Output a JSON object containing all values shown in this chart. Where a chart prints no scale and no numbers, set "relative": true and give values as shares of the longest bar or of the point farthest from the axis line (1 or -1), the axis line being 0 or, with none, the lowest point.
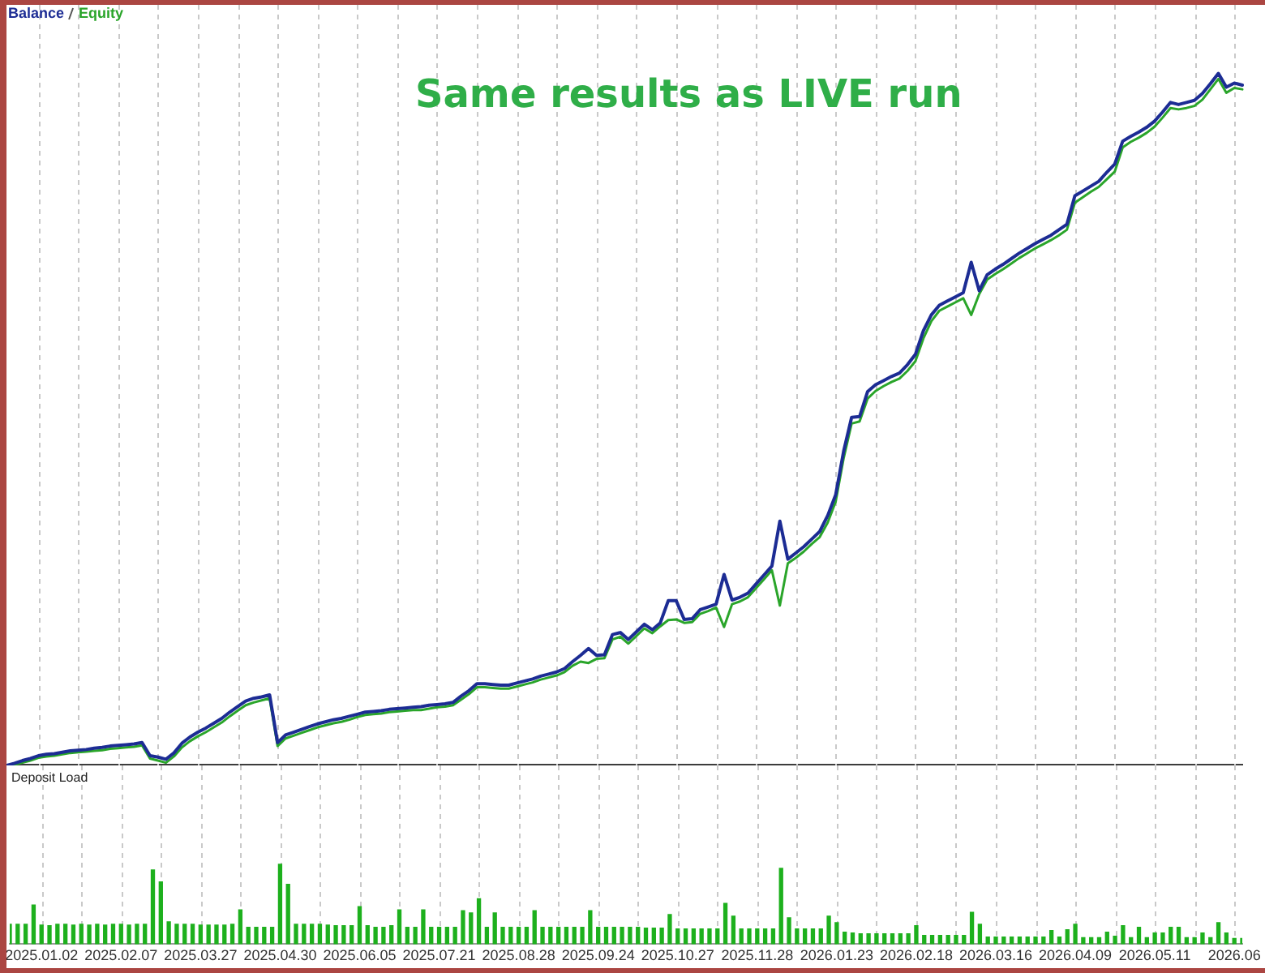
{
  "chart_data": [
    {
      "type": "line",
      "title": "Same results as LIVE run",
      "relative": true,
      "categories": [
        null,
        null,
        null,
        null,
        null,
        null,
        null,
        null,
        null,
        null,
        null,
        null,
        null,
        null,
        null,
        null,
        null,
        null,
        null,
        null,
        null,
        null,
        null,
        null,
        null,
        null,
        null,
        null,
        null,
        null,
        null,
        null,
        null,
        null,
        null,
        null,
        null,
        null,
        null,
        null,
        null,
        null,
        null,
        null,
        null,
        null,
        null,
        null,
        null,
        null,
        null,
        null,
        null,
        null,
        null,
        null,
        null,
        null,
        null,
        null,
        null,
        null,
        null,
        null,
        null,
        null,
        null,
        null,
        null,
        null,
        null,
        null,
        null,
        null,
        null,
        null,
        null,
        null,
        null,
        null,
        null,
        null,
        null,
        null,
        null,
        null,
        null,
        null,
        null,
        null,
        null,
        null,
        null,
        null,
        null,
        null,
        null,
        null,
        null,
        null,
        null,
        null,
        null,
        null,
        null,
        null,
        null,
        null,
        null,
        null,
        null,
        null,
        null,
        null,
        null,
        null,
        null,
        null,
        null,
        null,
        null,
        null,
        null,
        null,
        null,
        null,
        null,
        null,
        null,
        null,
        null,
        null,
        null,
        null,
        null,
        null,
        null,
        null,
        null,
        null,
        null,
        null,
        null,
        null,
        null,
        null,
        null,
        null,
        null,
        null,
        null,
        null,
        null,
        null,
        null,
        null
      ],
      "series": [
        {
          "name": "Balance",
          "color": "#1c2c94",
          "values": [
            0.0,
            0.003,
            0.007,
            0.01,
            0.014,
            0.016,
            0.017,
            0.019,
            0.021,
            0.022,
            0.023,
            0.025,
            0.026,
            0.028,
            0.029,
            0.03,
            0.031,
            0.033,
            0.014,
            0.012,
            0.009,
            0.018,
            0.032,
            0.041,
            0.048,
            0.054,
            0.061,
            0.068,
            0.077,
            0.085,
            0.093,
            0.097,
            0.099,
            0.102,
            0.033,
            0.044,
            0.048,
            0.052,
            0.056,
            0.06,
            0.063,
            0.066,
            0.068,
            0.071,
            0.074,
            0.077,
            0.078,
            0.079,
            0.081,
            0.082,
            0.083,
            0.084,
            0.085,
            0.087,
            0.088,
            0.089,
            0.091,
            0.1,
            0.108,
            0.118,
            0.118,
            0.117,
            0.116,
            0.116,
            0.119,
            0.122,
            0.125,
            0.129,
            0.132,
            0.135,
            0.14,
            0.15,
            0.159,
            0.169,
            0.159,
            0.16,
            0.189,
            0.192,
            0.182,
            0.193,
            0.204,
            0.196,
            0.206,
            0.238,
            0.238,
            0.211,
            0.212,
            0.225,
            0.229,
            0.233,
            0.276,
            0.239,
            0.243,
            0.249,
            0.262,
            0.275,
            0.288,
            0.353,
            0.298,
            0.307,
            0.316,
            0.327,
            0.338,
            0.361,
            0.391,
            0.454,
            0.503,
            0.504,
            0.54,
            0.55,
            0.556,
            0.562,
            0.567,
            0.579,
            0.594,
            0.628,
            0.651,
            0.665,
            0.671,
            0.677,
            0.683,
            0.727,
            0.686,
            0.709,
            0.717,
            0.724,
            0.732,
            0.74,
            0.747,
            0.754,
            0.76,
            0.766,
            0.774,
            0.782,
            0.823,
            0.83,
            0.837,
            0.844,
            0.857,
            0.869,
            0.902,
            0.909,
            0.915,
            0.922,
            0.931,
            0.944,
            0.958,
            0.955,
            0.958,
            0.961,
            0.971,
            0.985,
            1.0,
            0.98,
            0.986,
            0.983
          ]
        },
        {
          "name": "Equity",
          "color": "#2aa52a",
          "values": [
            0.0,
            0.001,
            0.004,
            0.007,
            0.011,
            0.013,
            0.014,
            0.016,
            0.018,
            0.019,
            0.02,
            0.021,
            0.022,
            0.024,
            0.025,
            0.026,
            0.027,
            0.029,
            0.01,
            0.007,
            0.004,
            0.013,
            0.026,
            0.035,
            0.042,
            0.048,
            0.055,
            0.062,
            0.071,
            0.079,
            0.087,
            0.091,
            0.094,
            0.097,
            0.028,
            0.039,
            0.043,
            0.047,
            0.051,
            0.055,
            0.058,
            0.061,
            0.063,
            0.066,
            0.07,
            0.073,
            0.074,
            0.075,
            0.077,
            0.078,
            0.079,
            0.08,
            0.08,
            0.082,
            0.084,
            0.085,
            0.087,
            0.095,
            0.103,
            0.113,
            0.113,
            0.112,
            0.111,
            0.111,
            0.114,
            0.117,
            0.12,
            0.124,
            0.127,
            0.13,
            0.135,
            0.144,
            0.15,
            0.148,
            0.154,
            0.155,
            0.182,
            0.186,
            0.176,
            0.187,
            0.198,
            0.191,
            0.201,
            0.21,
            0.211,
            0.206,
            0.207,
            0.219,
            0.223,
            0.228,
            0.2,
            0.233,
            0.237,
            0.243,
            0.256,
            0.269,
            0.282,
            0.231,
            0.292,
            0.3,
            0.309,
            0.32,
            0.33,
            0.351,
            0.381,
            0.444,
            0.494,
            0.497,
            0.53,
            0.541,
            0.548,
            0.554,
            0.559,
            0.57,
            0.584,
            0.617,
            0.642,
            0.657,
            0.663,
            0.669,
            0.675,
            0.651,
            0.681,
            0.702,
            0.71,
            0.717,
            0.725,
            0.733,
            0.74,
            0.747,
            0.753,
            0.759,
            0.766,
            0.774,
            0.813,
            0.821,
            0.829,
            0.836,
            0.847,
            0.858,
            0.893,
            0.901,
            0.907,
            0.914,
            0.923,
            0.936,
            0.95,
            0.948,
            0.95,
            0.953,
            0.962,
            0.977,
            0.992,
            0.972,
            0.979,
            0.977
          ]
        }
      ],
      "grid": "x",
      "tick_labels": false
    },
    {
      "type": "bar",
      "title": "Deposit Load",
      "relative": true,
      "categories": [
        null,
        null,
        null,
        null,
        "2025.01.02",
        null,
        null,
        null,
        null,
        null,
        null,
        null,
        null,
        null,
        "2025.02.07",
        null,
        null,
        null,
        null,
        null,
        null,
        null,
        null,
        null,
        "2025.03.27",
        null,
        null,
        null,
        null,
        null,
        null,
        null,
        null,
        null,
        "2025.04.30",
        null,
        null,
        null,
        null,
        null,
        null,
        null,
        null,
        null,
        "2025.06.05",
        null,
        null,
        null,
        null,
        null,
        null,
        null,
        null,
        null,
        "2025.07.21",
        null,
        null,
        null,
        null,
        null,
        null,
        null,
        null,
        null,
        "2025.08.28",
        null,
        null,
        null,
        null,
        null,
        null,
        null,
        null,
        null,
        "2025.09.24",
        null,
        null,
        null,
        null,
        null,
        null,
        null,
        null,
        null,
        "2025.10.27",
        null,
        null,
        null,
        null,
        null,
        null,
        null,
        null,
        null,
        "2025.11.28",
        null,
        null,
        null,
        null,
        null,
        null,
        null,
        null,
        null,
        "2026.01.23",
        null,
        null,
        null,
        null,
        null,
        null,
        null,
        null,
        null,
        "2026.02.18",
        null,
        null,
        null,
        null,
        null,
        null,
        null,
        null,
        null,
        "2026.03.16",
        null,
        null,
        null,
        null,
        null,
        null,
        null,
        null,
        null,
        "2026.04.09",
        null,
        null,
        null,
        null,
        null,
        null,
        null,
        null,
        null,
        "2026.05.11",
        null,
        null,
        null,
        null,
        null,
        null,
        null,
        null,
        null,
        "2026.06",
        null
      ],
      "values": [
        0.25,
        0.25,
        0.25,
        0.49,
        0.24,
        0.23,
        0.25,
        0.25,
        0.24,
        0.25,
        0.24,
        0.25,
        0.24,
        0.25,
        0.25,
        0.24,
        0.25,
        0.25,
        0.93,
        0.78,
        0.28,
        0.25,
        0.25,
        0.25,
        0.24,
        0.24,
        0.24,
        0.24,
        0.25,
        0.43,
        0.21,
        0.21,
        0.21,
        0.21,
        1.0,
        0.75,
        0.25,
        0.25,
        0.25,
        0.25,
        0.24,
        0.23,
        0.23,
        0.23,
        0.47,
        0.23,
        0.21,
        0.21,
        0.23,
        0.43,
        0.21,
        0.21,
        0.43,
        0.21,
        0.21,
        0.21,
        0.21,
        0.42,
        0.39,
        0.57,
        0.21,
        0.39,
        0.21,
        0.21,
        0.21,
        0.21,
        0.42,
        0.21,
        0.21,
        0.21,
        0.21,
        0.21,
        0.21,
        0.42,
        0.21,
        0.21,
        0.21,
        0.21,
        0.21,
        0.21,
        0.2,
        0.2,
        0.2,
        0.37,
        0.19,
        0.19,
        0.19,
        0.19,
        0.19,
        0.19,
        0.51,
        0.35,
        0.19,
        0.19,
        0.19,
        0.19,
        0.19,
        0.95,
        0.33,
        0.19,
        0.19,
        0.19,
        0.19,
        0.35,
        0.27,
        0.15,
        0.14,
        0.13,
        0.13,
        0.13,
        0.13,
        0.13,
        0.13,
        0.13,
        0.23,
        0.11,
        0.11,
        0.11,
        0.11,
        0.11,
        0.11,
        0.4,
        0.25,
        0.09,
        0.09,
        0.09,
        0.09,
        0.09,
        0.09,
        0.09,
        0.09,
        0.17,
        0.09,
        0.18,
        0.25,
        0.08,
        0.08,
        0.08,
        0.15,
        0.1,
        0.23,
        0.08,
        0.21,
        0.08,
        0.14,
        0.14,
        0.21,
        0.21,
        0.08,
        0.08,
        0.14,
        0.08,
        0.27,
        0.14,
        0.07,
        0.07
      ],
      "color": "#1db01d",
      "grid": "x",
      "tick_labels": "x"
    }
  ]
}
